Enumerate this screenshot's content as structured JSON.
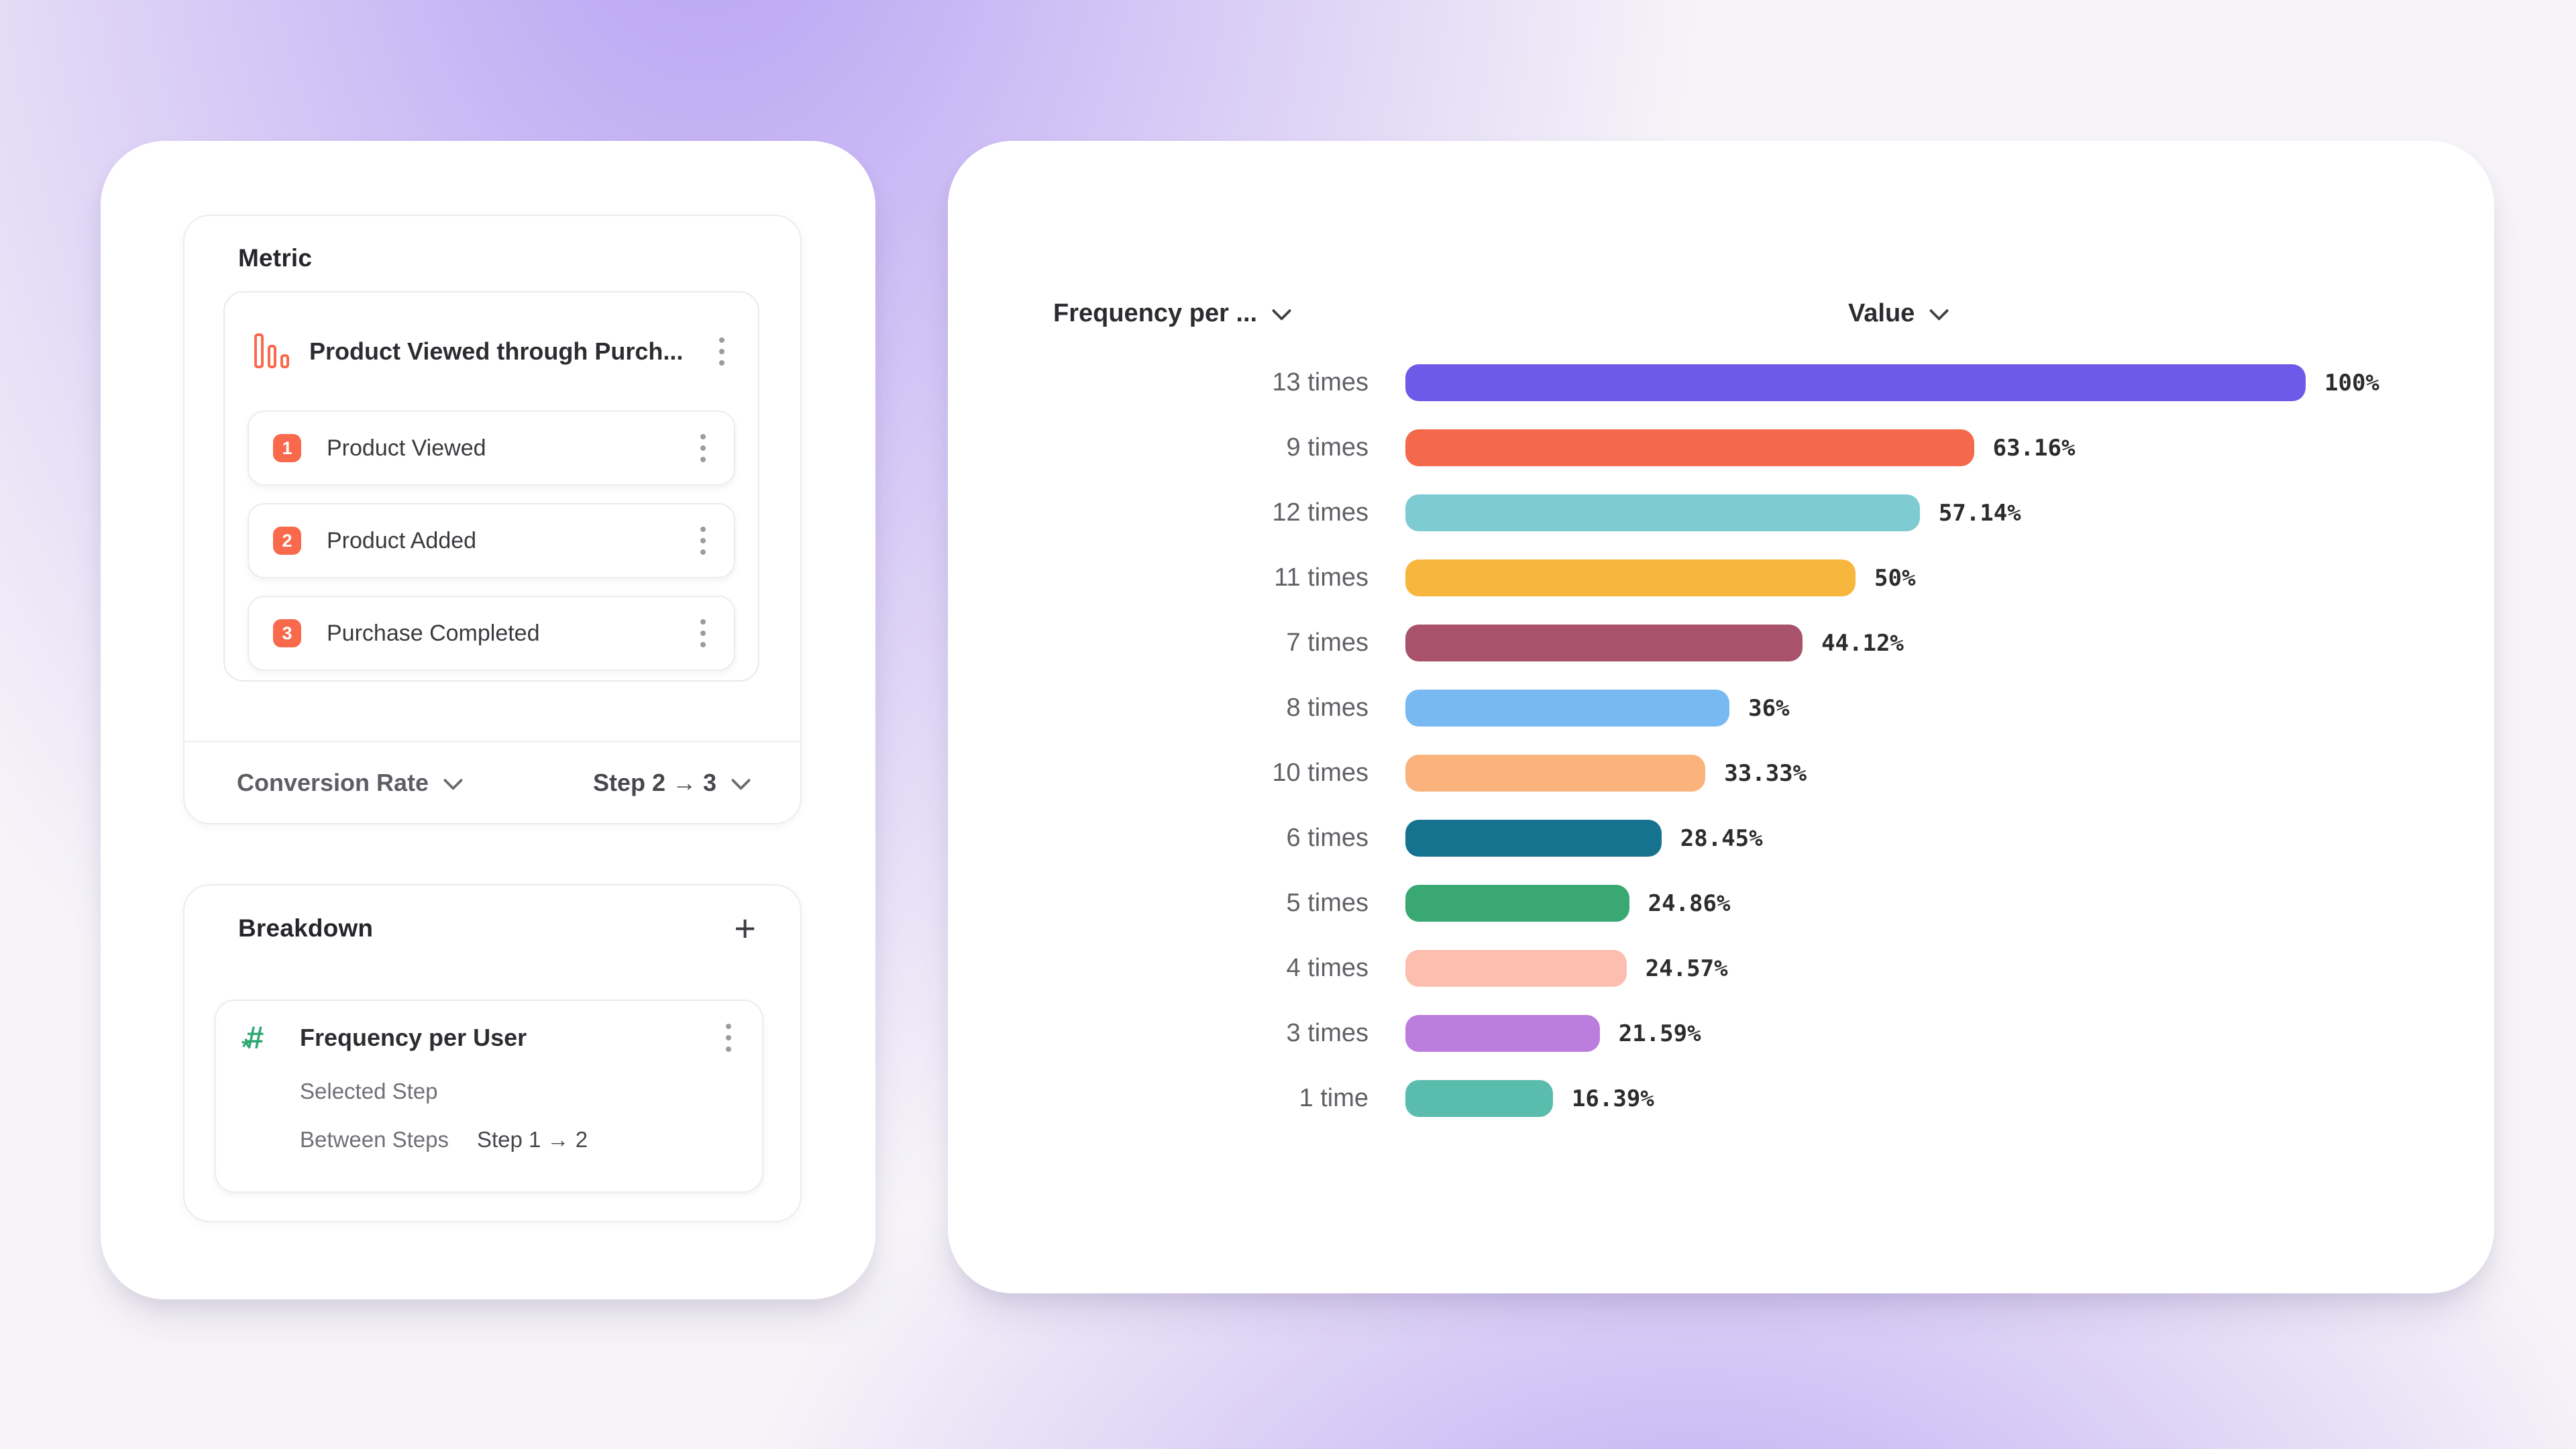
{
  "colors": {
    "background_base": "#f6f4f8",
    "background_glow": "#8a63f0",
    "accent_orange": "#f9694c",
    "accent_green": "#2ea873",
    "card_border": "#ececef"
  },
  "icons": {
    "metric_type": "bar-chart-icon",
    "breakdown_property": "hash-icon",
    "row_menu": "kebab-menu-icon",
    "add": "plus-icon",
    "dropdown": "chevron-down-icon"
  },
  "left_panel": {
    "metric_card": {
      "title": "Metric",
      "funnel": {
        "name": "Product Viewed through Purch...",
        "steps": [
          {
            "number": "1",
            "label": "Product Viewed"
          },
          {
            "number": "2",
            "label": "Product Added"
          },
          {
            "number": "3",
            "label": "Purchase Completed"
          }
        ]
      },
      "footer": {
        "measurement_label": "Conversion Rate",
        "step_range_label": "Step 2 → 3"
      }
    },
    "breakdown_card": {
      "title": "Breakdown",
      "add_label": "+",
      "item": {
        "name": "Frequency per User",
        "selected_step_label": "Selected Step",
        "between_steps_label": "Between Steps",
        "between_steps_value": "Step 1 → 2"
      }
    }
  },
  "right_panel": {
    "columns": {
      "breakdown_header": "Frequency per ...",
      "value_header": "Value"
    }
  },
  "chart_data": {
    "type": "bar",
    "orientation": "horizontal",
    "column_headers": [
      "Frequency per ...",
      "Value"
    ],
    "categories": [
      "13 times",
      "9 times",
      "12 times",
      "11 times",
      "7 times",
      "8 times",
      "10 times",
      "6 times",
      "5 times",
      "4 times",
      "3 times",
      "1 time"
    ],
    "values": [
      100,
      63.16,
      57.14,
      50,
      44.12,
      36,
      33.33,
      28.45,
      24.86,
      24.57,
      21.59,
      16.39
    ],
    "value_labels": [
      "100%",
      "63.16%",
      "57.14%",
      "50%",
      "44.12%",
      "36%",
      "33.33%",
      "28.45%",
      "24.86%",
      "24.57%",
      "21.59%",
      "16.39%"
    ],
    "bar_colors": [
      "#6e59e8",
      "#f4684b",
      "#7fcbd4",
      "#f7b73c",
      "#a8536b",
      "#79b9f1",
      "#fab37c",
      "#15738f",
      "#3aa873",
      "#fbbeaf",
      "#bb7ede",
      "#5abcad"
    ],
    "xlim": [
      0,
      100
    ],
    "grid": false,
    "legend": false
  }
}
